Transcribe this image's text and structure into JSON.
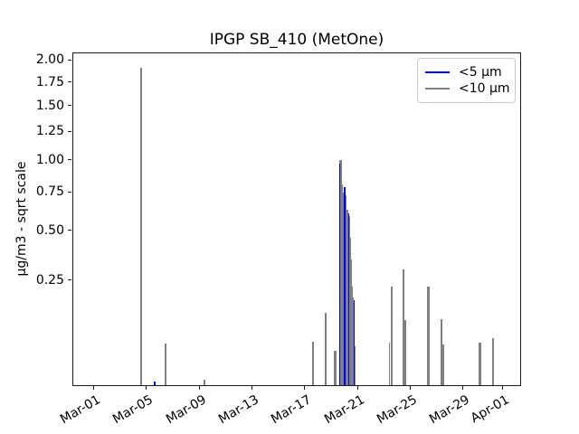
{
  "chart_data": {
    "type": "line",
    "title": "IPGP SB_410 (MetOne)",
    "xlabel": "",
    "ylabel": "µg/m3 - sqrt scale",
    "yscale": "sqrt",
    "ylim": [
      0.0037,
      2.09
    ],
    "grid": false,
    "legend_position": "upper right",
    "yticks": [
      {
        "value": 2.0,
        "label": "2.00"
      },
      {
        "value": 1.75,
        "label": "1.75"
      },
      {
        "value": 1.5,
        "label": "1.50"
      },
      {
        "value": 1.25,
        "label": "1.25"
      },
      {
        "value": 1.0,
        "label": "1.00"
      },
      {
        "value": 0.75,
        "label": "0.75"
      },
      {
        "value": 0.5,
        "label": "0.50"
      },
      {
        "value": 0.25,
        "label": "0.25"
      }
    ],
    "xlim_days": [
      -0.6,
      33.4
    ],
    "xticks": [
      {
        "day": 1,
        "label": "Mar-01"
      },
      {
        "day": 5,
        "label": "Mar-05"
      },
      {
        "day": 9,
        "label": "Mar-09"
      },
      {
        "day": 13,
        "label": "Mar-13"
      },
      {
        "day": 17,
        "label": "Mar-17"
      },
      {
        "day": 21,
        "label": "Mar-21"
      },
      {
        "day": 25,
        "label": "Mar-25"
      },
      {
        "day": 29,
        "label": "Mar-29"
      },
      {
        "day": 32,
        "label": "Apr-01"
      }
    ],
    "series": [
      {
        "name": "<5 µm",
        "color": "#0000ff",
        "units": "µg/m3",
        "points_day_value_width": [
          [
            5.57,
            0.006,
            2
          ],
          [
            9.3,
            0.005,
            1.5
          ],
          [
            18.5,
            0.012,
            1.5
          ],
          [
            23.52,
            0.023,
            1.5
          ],
          [
            24.43,
            0.02,
            1.5
          ],
          [
            26.32,
            0.015,
            1.5
          ],
          [
            27.33,
            0.015,
            1.5
          ],
          [
            31.22,
            0.012,
            1.5
          ]
        ],
        "points_front_day_value_width": [
          [
            19.58,
            0.96,
            1.5
          ],
          [
            19.95,
            0.78,
            1.5
          ],
          [
            20.26,
            0.6,
            1.3
          ],
          [
            20.7,
            0.17,
            1.3
          ]
        ]
      },
      {
        "name": "<10 µm",
        "color": "#808080",
        "units": "µg/m3",
        "points_day_value_width": [
          [
            4.54,
            1.9,
            2.5
          ],
          [
            6.38,
            0.055,
            2
          ],
          [
            9.32,
            0.007,
            2
          ],
          [
            17.57,
            0.058,
            2
          ],
          [
            18.5,
            0.131,
            2
          ],
          [
            19.25,
            0.042,
            2.5
          ],
          [
            19.6,
            0.9,
            2
          ],
          [
            19.64,
            0.99,
            2.5
          ],
          [
            19.72,
            0.97,
            2
          ],
          [
            19.79,
            0.8,
            2
          ],
          [
            19.86,
            0.74,
            2
          ],
          [
            19.93,
            0.74,
            2
          ],
          [
            20.0,
            0.72,
            2
          ],
          [
            20.07,
            0.6,
            2
          ],
          [
            20.14,
            0.62,
            2
          ],
          [
            20.21,
            0.6,
            2
          ],
          [
            20.28,
            0.58,
            2
          ],
          [
            20.35,
            0.45,
            2
          ],
          [
            20.42,
            0.34,
            2
          ],
          [
            20.49,
            0.22,
            2
          ],
          [
            20.56,
            0.18,
            2
          ],
          [
            20.63,
            0.1,
            2
          ],
          [
            20.7,
            0.05,
            2
          ],
          [
            23.37,
            0.056,
            1.5
          ],
          [
            23.52,
            0.22,
            2.5
          ],
          [
            24.43,
            0.295,
            2.5
          ],
          [
            24.57,
            0.11,
            1.5
          ],
          [
            26.32,
            0.22,
            2.5
          ],
          [
            27.33,
            0.112,
            2
          ],
          [
            27.45,
            0.053,
            1.5
          ],
          [
            30.2,
            0.056,
            2.5
          ],
          [
            31.22,
            0.065,
            2.5
          ]
        ]
      }
    ]
  }
}
